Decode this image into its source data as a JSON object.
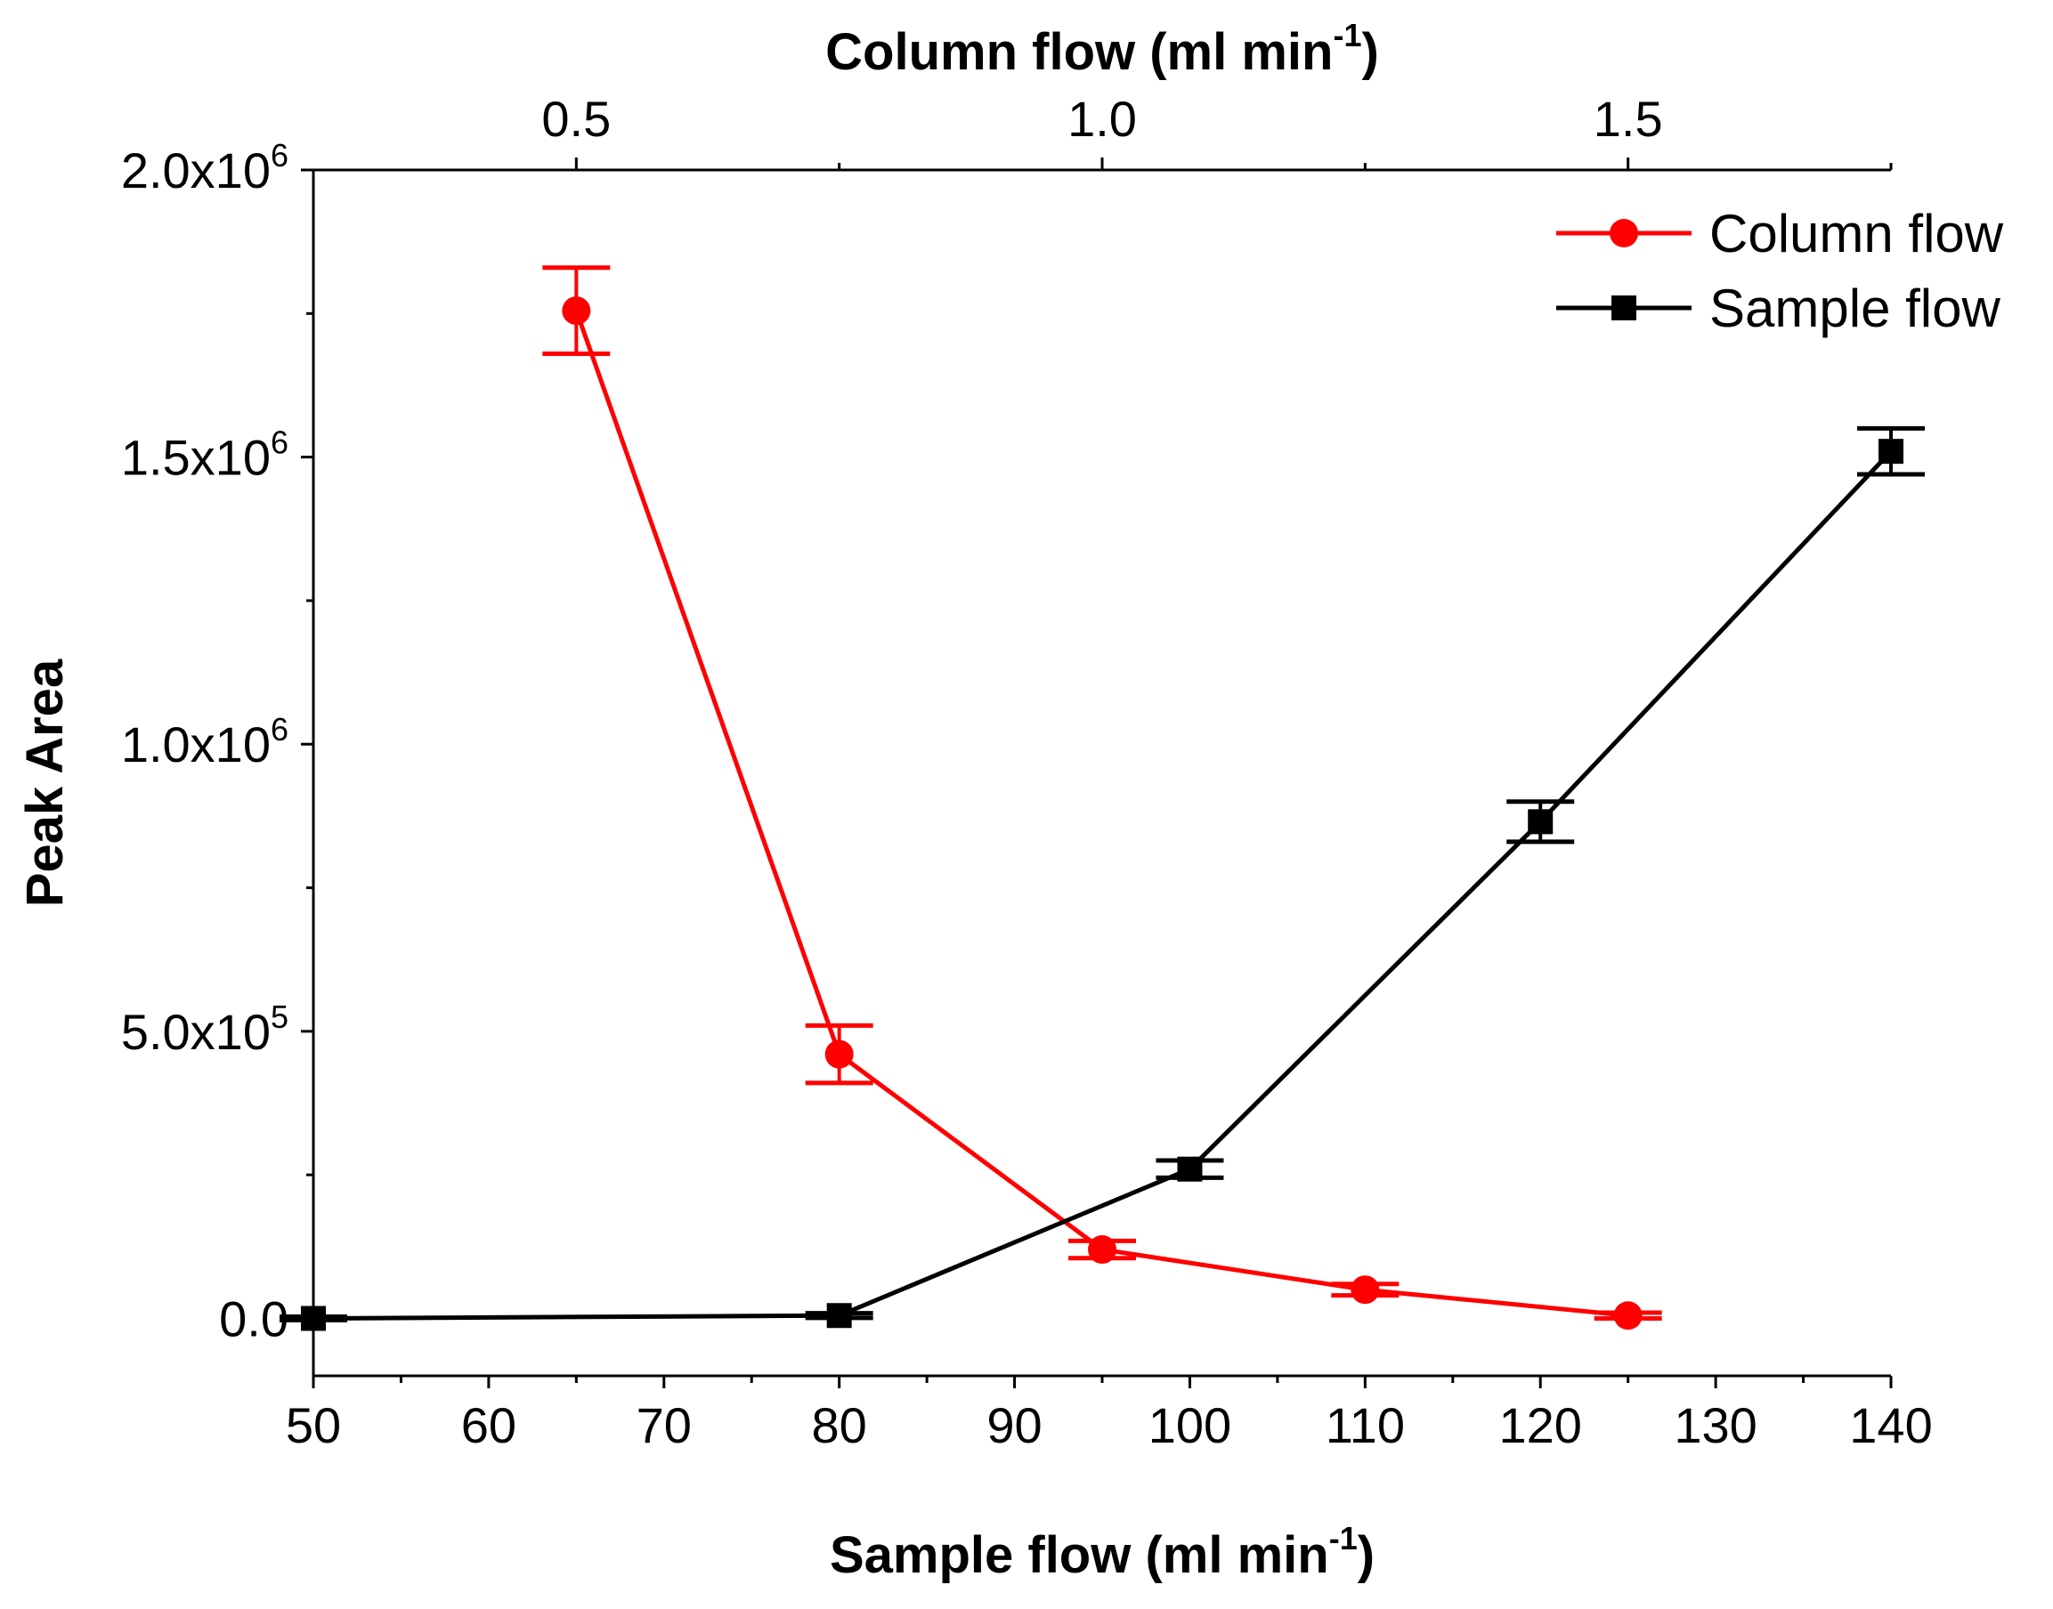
{
  "chart_data": {
    "type": "line",
    "xlabel_bottom": "Sample flow (ml min",
    "xlabel_bottom_sup": "-1",
    "xlabel_bottom_end": ")",
    "xlabel_top": "Column flow (ml min",
    "xlabel_top_sup": "-1",
    "xlabel_top_end": ")",
    "ylabel": "Peak Area",
    "xlim_bottom": [
      50,
      140
    ],
    "xlim_top": [
      0.25,
      1.75
    ],
    "ylim": [
      -100000,
      2000000
    ],
    "x_bottom_ticks": [
      "50",
      "60",
      "70",
      "80",
      "90",
      "100",
      "110",
      "120",
      "130",
      "140"
    ],
    "x_top_ticks": [
      "0.5",
      "1.0",
      "1.5"
    ],
    "y_ticks": [
      {
        "mant": "0.0",
        "exp": ""
      },
      {
        "mant": "5.0x10",
        "exp": "5"
      },
      {
        "mant": "1.0x10",
        "exp": "6"
      },
      {
        "mant": "1.5x10",
        "exp": "6"
      },
      {
        "mant": "2.0x10",
        "exp": "6"
      }
    ],
    "legend_position": "top-right",
    "series": [
      {
        "name": "Column flow",
        "axis": "top",
        "color": "#ff0000",
        "marker": "circle",
        "x": [
          0.5,
          0.75,
          1.0,
          1.25,
          1.5
        ],
        "y": [
          1755000,
          460000,
          120000,
          50000,
          5000
        ],
        "err": [
          75000,
          50000,
          15000,
          10000,
          5000
        ]
      },
      {
        "name": "Sample flow",
        "axis": "bottom",
        "color": "#000000",
        "marker": "square",
        "x": [
          50,
          80,
          100,
          120,
          140
        ],
        "y": [
          0,
          5000,
          260000,
          865000,
          1510000
        ],
        "err": [
          3000,
          4000,
          15000,
          35000,
          40000
        ]
      }
    ]
  }
}
